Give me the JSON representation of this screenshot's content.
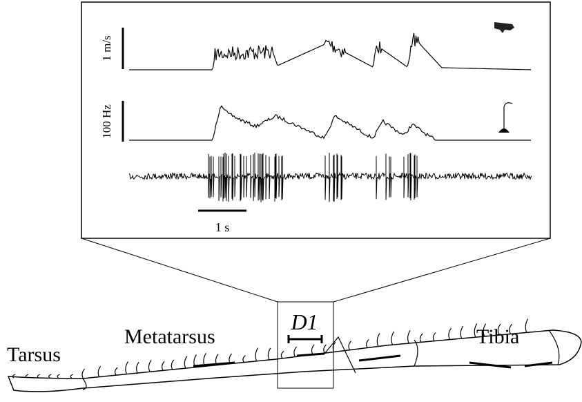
{
  "panel": {
    "velocity_scale": "1 m/s",
    "frequency_scale": "100 Hz",
    "time_scale": "1 s"
  },
  "leg": {
    "zoom_label": "D1",
    "segments": [
      "Tarsus",
      "Metatarsus",
      "Tibia"
    ]
  }
}
